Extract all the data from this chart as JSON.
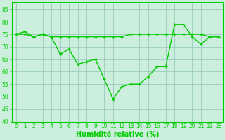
{
  "x": [
    0,
    1,
    2,
    3,
    4,
    5,
    6,
    7,
    8,
    9,
    10,
    11,
    12,
    13,
    14,
    15,
    16,
    17,
    18,
    19,
    20,
    21,
    22,
    23
  ],
  "series1": [
    75,
    76,
    74,
    75,
    74,
    67,
    69,
    63,
    64,
    65,
    57,
    49,
    54,
    55,
    55,
    58,
    62,
    62,
    79,
    79,
    74,
    71,
    74,
    74
  ],
  "series2": [
    75,
    75,
    74,
    75,
    74,
    74,
    74,
    74,
    74,
    74,
    74,
    74,
    74,
    75,
    75,
    75,
    75,
    75,
    75,
    75,
    75,
    75,
    74,
    74
  ],
  "line_color": "#00cc00",
  "bg_color": "#cceedd",
  "grid_color": "#99ccbb",
  "xlabel": "Humidité relative (%)",
  "ylim": [
    40,
    88
  ],
  "yticks": [
    40,
    45,
    50,
    55,
    60,
    65,
    70,
    75,
    80,
    85
  ],
  "xticks": [
    0,
    1,
    2,
    3,
    4,
    5,
    6,
    7,
    8,
    9,
    10,
    11,
    12,
    13,
    14,
    15,
    16,
    17,
    18,
    19,
    20,
    21,
    22,
    23
  ],
  "xlabel_fontsize": 7,
  "tick_fontsize": 5.5,
  "marker": "+",
  "marker_size": 3.5,
  "linewidth": 1.0
}
